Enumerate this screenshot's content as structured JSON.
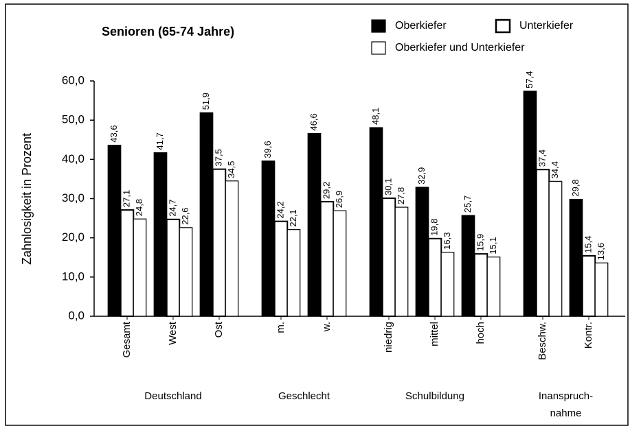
{
  "chart_data": {
    "type": "bar",
    "title": "Senioren (65-74 Jahre)",
    "y_label": "Zahnlosigkeit in Prozent",
    "categories": [
      "Gesamt",
      "West",
      "Ost",
      "m.",
      "w.",
      "niedrig",
      "mittel",
      "hoch",
      "Beschw.",
      "Kontr."
    ],
    "groups": [
      {
        "label": [
          "Deutschland"
        ],
        "count": 3
      },
      {
        "label": [
          "Geschlecht"
        ],
        "count": 2
      },
      {
        "label": [
          "Schulbildung"
        ],
        "count": 3
      },
      {
        "label": [
          "Inanspruch-",
          "nahme"
        ],
        "count": 2
      }
    ],
    "series": [
      {
        "name": "Oberkiefer",
        "color": "#000000",
        "values": [
          43.6,
          41.7,
          51.9,
          39.6,
          46.6,
          48.1,
          32.9,
          25.7,
          57.4,
          29.8
        ],
        "value_labels": [
          "43,6",
          "41,7",
          "51,9",
          "39,6",
          "46,6",
          "48,1",
          "32,9",
          "25,7",
          "57,4",
          "29,8"
        ]
      },
      {
        "name": "Unterkiefer",
        "color": "#ffffff",
        "values": [
          27.1,
          24.7,
          37.5,
          24.2,
          29.2,
          30.1,
          19.8,
          15.9,
          37.4,
          15.4
        ],
        "value_labels": [
          "27,1",
          "24,7",
          "37,5",
          "24,2",
          "29,2",
          "30,1",
          "19,8",
          "15,9",
          "37,4",
          "15,4"
        ]
      },
      {
        "name": "Oberkiefer und Unterkiefer",
        "color": "#ffffff",
        "values": [
          24.8,
          22.6,
          34.5,
          22.1,
          26.9,
          27.8,
          16.3,
          15.1,
          34.4,
          13.6
        ],
        "value_labels": [
          "24,8",
          "22,6",
          "34,5",
          "22,1",
          "26,9",
          "27,8",
          "16,3",
          "15,1",
          "34,4",
          "13,6"
        ]
      }
    ],
    "ylim": [
      0,
      60
    ],
    "yticks": [
      {
        "value": 0,
        "label": "0,0"
      },
      {
        "value": 10,
        "label": "10,0"
      },
      {
        "value": 20,
        "label": "20,0"
      },
      {
        "value": 30,
        "label": "30,0"
      },
      {
        "value": 40,
        "label": "40,0"
      },
      {
        "value": 50,
        "label": "50,0"
      },
      {
        "value": 60,
        "label": "60,0"
      }
    ],
    "grid": false
  }
}
